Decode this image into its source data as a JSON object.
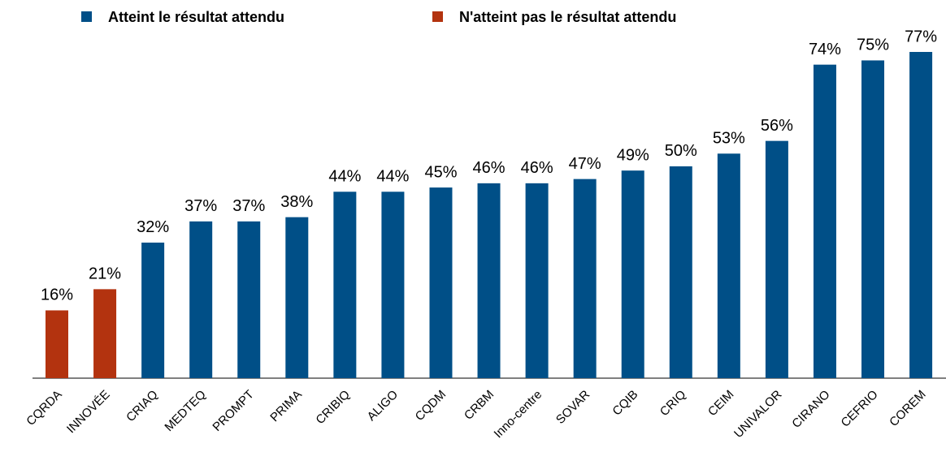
{
  "chart_data": {
    "type": "bar",
    "categories": [
      "CQRDA",
      "INNOVÉE",
      "CRIAQ",
      "MEDTEQ",
      "PROMPT",
      "PRIMA",
      "CRIBIQ",
      "ALIGO",
      "CQDM",
      "CRBM",
      "Inno-centre",
      "SOVAR",
      "CQIB",
      "CRIQ",
      "CEIM",
      "UNIVALOR",
      "CIRANO",
      "CEFRIO",
      "COREM"
    ],
    "series": [
      {
        "name": "Atteint le résultat attendu",
        "color": "#004f87",
        "values": [
          null,
          null,
          32,
          37,
          37,
          38,
          44,
          44,
          45,
          46,
          46,
          47,
          49,
          50,
          53,
          56,
          74,
          75,
          77
        ],
        "value_labels": [
          null,
          null,
          "32%",
          "37%",
          "37%",
          "38%",
          "44%",
          "44%",
          "45%",
          "46%",
          "46%",
          "47%",
          "49%",
          "50%",
          "53%",
          "56%",
          "74%",
          "75%",
          "77%"
        ]
      },
      {
        "name": "N'atteint pas le résultat attendu",
        "color": "#b3330f",
        "values": [
          16,
          21,
          null,
          null,
          null,
          null,
          null,
          null,
          null,
          null,
          null,
          null,
          null,
          null,
          null,
          null,
          null,
          null,
          null
        ],
        "value_labels": [
          "16%",
          "21%",
          null,
          null,
          null,
          null,
          null,
          null,
          null,
          null,
          null,
          null,
          null,
          null,
          null,
          null,
          null,
          null,
          null
        ]
      }
    ]
  }
}
